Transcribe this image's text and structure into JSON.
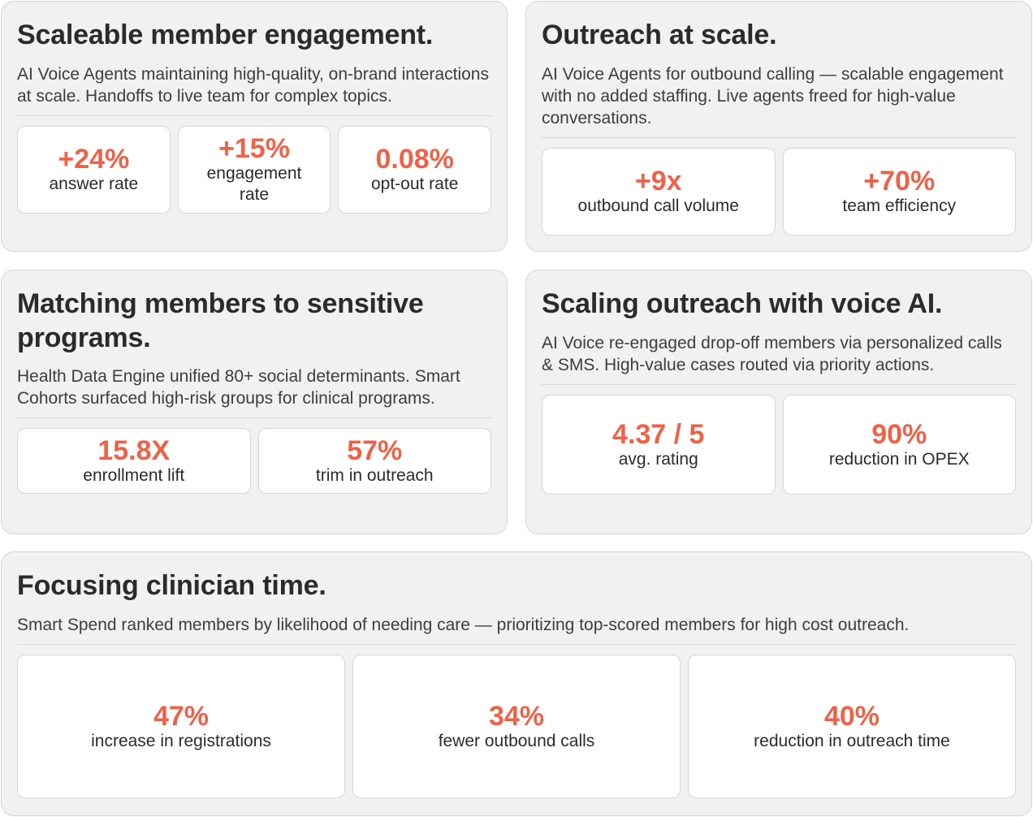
{
  "cards": [
    {
      "title": "Scaleable member engagement.",
      "description": "AI Voice Agents maintaining high-quality, on-brand interactions at scale. Handoffs to live team for complex topics.",
      "stats": [
        {
          "value": "+24%",
          "label": "answer rate"
        },
        {
          "value": "+15%",
          "label": "engagement rate"
        },
        {
          "value": "0.08%",
          "label": "opt-out rate"
        }
      ]
    },
    {
      "title": "Outreach at scale.",
      "description": "AI Voice Agents for outbound calling — scalable engagement with no added staffing. Live agents freed for high-value conversations.",
      "stats": [
        {
          "value": "+9x",
          "label": "outbound call volume"
        },
        {
          "value": "+70%",
          "label": "team efficiency"
        }
      ]
    },
    {
      "title": "Matching members to sensitive programs.",
      "description": "Health Data Engine unified 80+ social determinants. Smart Cohorts surfaced high-risk groups for clinical programs.",
      "stats": [
        {
          "value": "15.8X",
          "label": "enrollment lift"
        },
        {
          "value": "57%",
          "label": "trim in outreach"
        }
      ]
    },
    {
      "title": "Scaling outreach with voice AI.",
      "description": "AI Voice re-engaged drop-off members via personalized calls & SMS. High-value cases routed via priority actions.",
      "stats": [
        {
          "value": "4.37 / 5",
          "label": "avg. rating"
        },
        {
          "value": "90%",
          "label": "reduction in OPEX"
        }
      ]
    },
    {
      "title": "Focusing clinician time.",
      "description": "Smart Spend ranked members by likelihood of needing care — prioritizing top-scored members for high cost outreach.",
      "stats": [
        {
          "value": "47%",
          "label": "increase in registrations"
        },
        {
          "value": "34%",
          "label": "fewer outbound calls"
        },
        {
          "value": "40%",
          "label": "reduction in outreach time"
        }
      ]
    }
  ],
  "colors": {
    "accent": "#ee6248",
    "card_bg": "#f1f1f1",
    "border": "#d6d6d6",
    "text": "#2b2b2b"
  }
}
